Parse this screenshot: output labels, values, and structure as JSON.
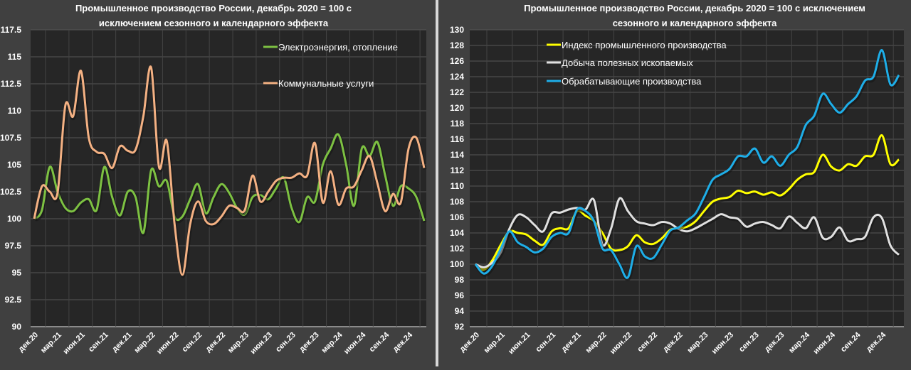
{
  "chart_data": [
    {
      "type": "line",
      "title_lines": [
        "Промышленное производство России, декабрь 2020 = 100 с",
        "исключением сезонного и календарного эффекта"
      ],
      "xlabel": "",
      "ylabel": "",
      "ylim": [
        90,
        117.5
      ],
      "yticks": [
        "90",
        "92.5",
        "95",
        "97.5",
        "100",
        "102.5",
        "105",
        "107.5",
        "110",
        "112.5",
        "115",
        "117.5"
      ],
      "x_tick_labels": [
        "дек.20",
        "мар.21",
        "июн.21",
        "сен.21",
        "дек.21",
        "мар.22",
        "июн.22",
        "сен.22",
        "дек.22",
        "мар.23",
        "июн.23",
        "сен.23",
        "дек.23",
        "мар.24",
        "июн.24",
        "сен.24",
        "дек.24"
      ],
      "x_tick_every_months": 3,
      "n_points": 51,
      "grid": true,
      "legend_position": "top-right",
      "series": [
        {
          "name": "Электроэнергия, отопление",
          "color": "#7dc142",
          "values": [
            100,
            100.8,
            104.8,
            102.5,
            101,
            100.7,
            101.5,
            101.8,
            100.8,
            104.8,
            102,
            100.3,
            102.5,
            102,
            98.7,
            104.5,
            103,
            103.5,
            100.2,
            100.2,
            101.8,
            103.2,
            100.5,
            102,
            103.2,
            102.4,
            101,
            100.4,
            102,
            102.2,
            101.8,
            102.8,
            103.8,
            101,
            99.7,
            102,
            101.6,
            105,
            106.5,
            107.8,
            105,
            101.2,
            106.5,
            105.8,
            107.1,
            104,
            101.2,
            103,
            102.8,
            102,
            99.8
          ]
        },
        {
          "name": "Коммунальные услуги",
          "color": "#f4b183",
          "values": [
            100,
            103,
            102.5,
            102.4,
            110.5,
            109.5,
            113.7,
            107.5,
            106.2,
            106,
            104.7,
            106.7,
            106.3,
            106.4,
            109.5,
            114,
            104.8,
            107.2,
            99.5,
            94.8,
            99.5,
            101.6,
            99.8,
            99.5,
            100.2,
            101.2,
            101,
            100.8,
            104,
            101.6,
            102.5,
            103.5,
            103.8,
            103.8,
            104.2,
            104,
            107,
            101.5,
            104.4,
            101.3,
            102.8,
            103,
            104.5,
            105.8,
            103.3,
            100.7,
            102.3,
            101.5,
            106.5,
            107.5,
            104.7
          ]
        }
      ]
    },
    {
      "type": "line",
      "title_lines": [
        "Промышленное производство России, декабрь 2020 = 100 с исключением",
        "сезонного и календарного эффекта"
      ],
      "xlabel": "",
      "ylabel": "",
      "ylim": [
        92,
        130
      ],
      "yticks": [
        "92",
        "94",
        "96",
        "98",
        "100",
        "102",
        "104",
        "106",
        "108",
        "110",
        "112",
        "114",
        "116",
        "118",
        "120",
        "122",
        "124",
        "126",
        "128",
        "130"
      ],
      "x_tick_labels": [
        "дек.20",
        "мар.21",
        "июн.21",
        "сен.21",
        "дек.21",
        "мар.22",
        "июн.22",
        "сен.22",
        "дек.22",
        "мар.23",
        "июн.23",
        "сен.23",
        "дек.23",
        "мар.24",
        "июн.24",
        "сен.24",
        "дек.24"
      ],
      "x_tick_every_months": 3,
      "n_points": 51,
      "grid": true,
      "legend_position": "top-left",
      "series": [
        {
          "name": "Индекс промышленного производства",
          "color": "#ffff00",
          "values": [
            100,
            99.3,
            100.5,
            102.5,
            104.2,
            104,
            103.8,
            103,
            102.5,
            104.2,
            104.6,
            104.6,
            106.8,
            106.2,
            105.5,
            104,
            102,
            101.8,
            102.3,
            103.7,
            102.8,
            102.6,
            103.3,
            104.4,
            104.6,
            104.8,
            105.5,
            106.8,
            108,
            108.4,
            108.6,
            109.4,
            109.1,
            109.3,
            108.9,
            109.2,
            108.8,
            109.6,
            110.8,
            111.5,
            111.8,
            114,
            112.5,
            112,
            112.8,
            112.6,
            113.8,
            114,
            116.5,
            112.8,
            113.4
          ]
        },
        {
          "name": "Добыча полезных ископаемых",
          "color": "#e0e0e0",
          "values": [
            100,
            99.6,
            100.2,
            101.5,
            104.5,
            106.3,
            106,
            105,
            104.2,
            106.5,
            106.6,
            107,
            107.2,
            107,
            108.2,
            102.5,
            104.5,
            108.4,
            106.8,
            105.5,
            105.2,
            105,
            105.4,
            105.2,
            104.5,
            104.2,
            104.6,
            105.2,
            105.8,
            106.4,
            106,
            105.8,
            104.8,
            105.2,
            105.4,
            105,
            104.6,
            106.1,
            105.3,
            104.6,
            106,
            103.4,
            103.5,
            104.7,
            103,
            103.2,
            103.5,
            106,
            105.9,
            102.4,
            101.2
          ]
        },
        {
          "name": "Обрабатывающие производства",
          "color": "#1eaee8",
          "values": [
            100,
            98.8,
            99.8,
            102,
            104.2,
            102.8,
            102.2,
            101.5,
            102,
            103.5,
            104,
            104,
            107,
            106.8,
            105.5,
            102,
            101.8,
            100,
            98.3,
            102.3,
            101,
            100.8,
            102.5,
            104.3,
            104.7,
            105.6,
            106.5,
            108.6,
            110.8,
            111.5,
            112.2,
            113.8,
            113.8,
            114.8,
            113,
            113.8,
            112.6,
            114,
            115,
            117.8,
            119,
            121.8,
            120.5,
            119.4,
            120.5,
            121.5,
            123.5,
            124,
            127.4,
            123,
            124.2
          ]
        }
      ]
    }
  ]
}
